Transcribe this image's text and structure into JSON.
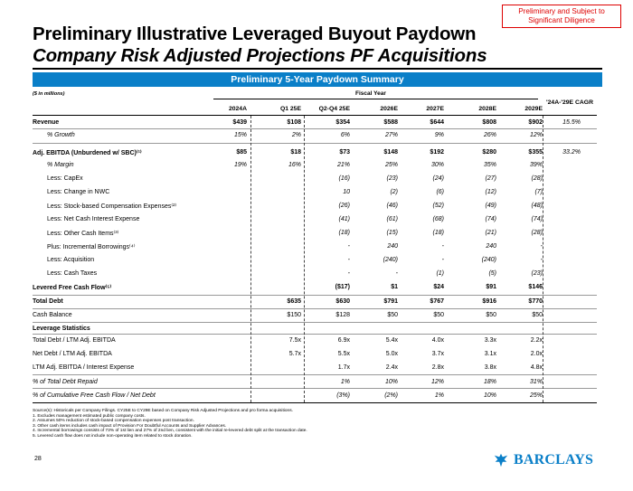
{
  "stamp": "Preliminary and Subject to Significant Diligence",
  "title_line1": "Preliminary Illustrative Leveraged Buyout Paydown",
  "title_line2": "Company Risk Adjusted Projections PF Acquisitions",
  "banner": "Preliminary 5-Year Paydown Summary",
  "units": "($ in millions)",
  "fiscal_year": "Fiscal Year",
  "columns": [
    "2024A",
    "Q1 25E",
    "Q2-Q4 25E",
    "2026E",
    "2027E",
    "2028E",
    "2029E"
  ],
  "cagr_header": "'24A-'29E CAGR",
  "rows": [
    {
      "label": "Revenue",
      "cls": "b",
      "values": [
        "$439",
        "$108",
        "$354",
        "$588",
        "$644",
        "$808",
        "$902"
      ],
      "cagr": "15.5%"
    },
    {
      "label": "% Growth",
      "cls": "i ind",
      "values": [
        "15%",
        "2%",
        "6%",
        "27%",
        "9%",
        "26%",
        "12%"
      ],
      "cagr": ""
    },
    {
      "label": "Adj. EBITDA (Unburdened w/ SBC)⁽¹⁾",
      "cls": "b",
      "values": [
        "$85",
        "$18",
        "$73",
        "$148",
        "$192",
        "$280",
        "$355"
      ],
      "cagr": "33.2%"
    },
    {
      "label": "% Margin",
      "cls": "i ind",
      "values": [
        "19%",
        "16%",
        "21%",
        "25%",
        "30%",
        "35%",
        "39%"
      ],
      "cagr": ""
    },
    {
      "label": "Less: CapEx",
      "cls": "ind",
      "values": [
        "",
        "",
        "(16)",
        "(23)",
        "(24)",
        "(27)",
        "(28)"
      ],
      "cagr": ""
    },
    {
      "label": "Less: Change in NWC",
      "cls": "ind",
      "values": [
        "",
        "",
        "10",
        "(2)",
        "(6)",
        "(12)",
        "(7)"
      ],
      "cagr": ""
    },
    {
      "label": "Less: Stock-based Compensation Expenses⁽²⁾",
      "cls": "ind",
      "values": [
        "",
        "",
        "(26)",
        "(46)",
        "(52)",
        "(49)",
        "(48)"
      ],
      "cagr": ""
    },
    {
      "label": "Less: Net Cash Interest Expense",
      "cls": "ind",
      "values": [
        "",
        "",
        "(41)",
        "(61)",
        "(68)",
        "(74)",
        "(74)"
      ],
      "cagr": ""
    },
    {
      "label": "Less: Other Cash Items⁽³⁾",
      "cls": "ind",
      "values": [
        "",
        "",
        "(18)",
        "(15)",
        "(18)",
        "(21)",
        "(28)"
      ],
      "cagr": ""
    },
    {
      "label": "Plus: Incremental Borrowings⁽⁴⁾",
      "cls": "ind",
      "values": [
        "",
        "",
        "-",
        "240",
        "-",
        "240",
        "-"
      ],
      "cagr": ""
    },
    {
      "label": "Less: Acquisition",
      "cls": "ind",
      "values": [
        "",
        "",
        "-",
        "(240)",
        "-",
        "(240)",
        "-"
      ],
      "cagr": ""
    },
    {
      "label": "Less: Cash Taxes",
      "cls": "ind",
      "values": [
        "",
        "",
        "-",
        "-",
        "(1)",
        "(5)",
        "(23)"
      ],
      "cagr": ""
    },
    {
      "label": "Levered Free Cash Flow⁽⁵⁾",
      "cls": "b",
      "values": [
        "",
        "",
        "($17)",
        "$1",
        "$24",
        "$91",
        "$146"
      ],
      "cagr": ""
    },
    {
      "label": "Total Debt",
      "cls": "b",
      "values": [
        "",
        "$635",
        "$630",
        "$791",
        "$767",
        "$916",
        "$770"
      ],
      "cagr": ""
    },
    {
      "label": "Cash Balance",
      "cls": "",
      "values": [
        "",
        "$150",
        "$128",
        "$50",
        "$50",
        "$50",
        "$50"
      ],
      "cagr": ""
    },
    {
      "label": "Leverage Statistics",
      "cls": "b",
      "values": [
        "",
        "",
        "",
        "",
        "",
        "",
        ""
      ],
      "cagr": ""
    },
    {
      "label": "Total Debt / LTM Adj. EBITDA",
      "cls": "",
      "values": [
        "",
        "7.5x",
        "6.9x",
        "5.4x",
        "4.0x",
        "3.3x",
        "2.2x"
      ],
      "cagr": ""
    },
    {
      "label": "Net Debt / LTM Adj. EBITDA",
      "cls": "",
      "values": [
        "",
        "5.7x",
        "5.5x",
        "5.0x",
        "3.7x",
        "3.1x",
        "2.0x"
      ],
      "cagr": ""
    },
    {
      "label": "LTM Adj. EBITDA / Interest Expense",
      "cls": "",
      "values": [
        "",
        "",
        "1.7x",
        "2.4x",
        "2.8x",
        "3.8x",
        "4.8x"
      ],
      "cagr": ""
    },
    {
      "label": "% of Total Debt Repaid",
      "cls": "i",
      "values": [
        "",
        "",
        "1%",
        "10%",
        "12%",
        "18%",
        "31%"
      ],
      "cagr": ""
    },
    {
      "label": "% of Cumulative Free Cash Flow / Net Debt",
      "cls": "i",
      "values": [
        "",
        "",
        "(3%)",
        "(2%)",
        "1%",
        "10%",
        "25%"
      ],
      "cagr": ""
    }
  ],
  "footnotes": [
    "Source(s): Historicals per Company Filings. CY25E to CY29E based on Company Risk Adjusted Projections and pro forma acquisitions.",
    "1.      Excludes management estimated public company costs.",
    "2.      Assumes 50% reduction of stock-based compensation expenses post transaction.",
    "3.      Other cash items includes cash impact of Provision For Doubtful Accounts and Supplier Advances.",
    "4.      Incremental borrowings consists of 73% of 1st lien and 27% of 2nd lien, consistent with the initial re-levered debt split at the transaction date.",
    "5.      Levered cash flow does not include non-operating item related to stock donation."
  ],
  "page_number": "28",
  "logo_text": "BARCLAYS",
  "brand_color": "#0a7fc8",
  "accent_red": "#dd0000"
}
